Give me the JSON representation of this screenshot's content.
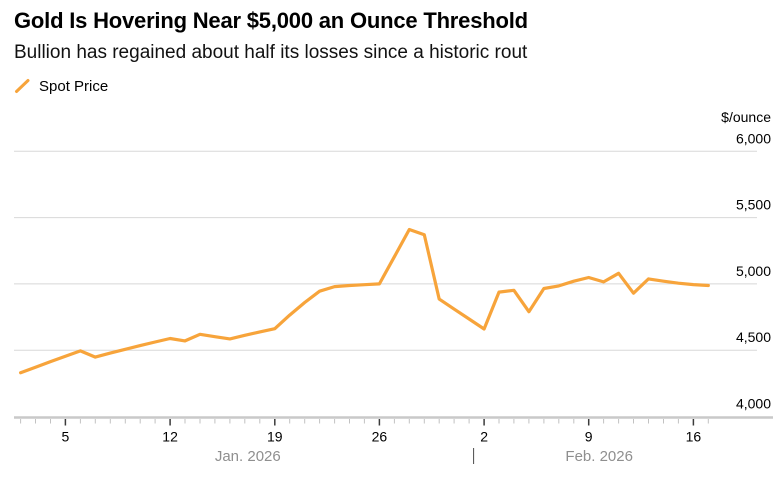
{
  "header": {
    "title": "Gold Is Hovering Near $5,000 an Ounce Threshold",
    "subtitle": "Bullion has regained about half its losses since a historic rout"
  },
  "legend": {
    "items": [
      {
        "label": "Spot Price",
        "marker": "orange-slash-icon"
      }
    ]
  },
  "colors": {
    "line": "#F7A43B",
    "grid": "#D8D8D8",
    "axis": "#C9C9C9",
    "tick_minor": "#C2C2C2",
    "tick_major": "#3A3A3A",
    "tick_label": "#000000",
    "month_label": "#8F8F8F",
    "separator": "#4A4A4A"
  },
  "chart_data": {
    "type": "line",
    "title": "Gold Is Hovering Near $5,000 an Ounce Threshold",
    "subtitle": "Bullion has regained about half its losses since a historic rout",
    "unit_label": "$/ounce",
    "xlabel": "",
    "ylabel": "$/ounce",
    "ylim": [
      4000,
      6000
    ],
    "grid": "horizontal",
    "legend_position": "top-left",
    "y_ticks": [
      {
        "value": 4000,
        "label": "4,000"
      },
      {
        "value": 4500,
        "label": "4,500"
      },
      {
        "value": 5000,
        "label": "5,000"
      },
      {
        "value": 5500,
        "label": "5,500"
      },
      {
        "value": 6000,
        "label": "6,000"
      }
    ],
    "x_major_ticks": [
      {
        "index": 3,
        "label": "5"
      },
      {
        "index": 10,
        "label": "12"
      },
      {
        "index": 17,
        "label": "19"
      },
      {
        "index": 24,
        "label": "26"
      },
      {
        "index": 31,
        "label": "2"
      },
      {
        "index": 38,
        "label": "9"
      },
      {
        "index": 45,
        "label": "16"
      }
    ],
    "month_labels": [
      {
        "label": "Jan. 2026",
        "center_index": 15.2
      },
      {
        "label": "Feb. 2026",
        "center_index": 38.7
      }
    ],
    "month_separator_index": 30.3,
    "series": [
      {
        "name": "Spot Price",
        "color": "#F7A43B",
        "x": [
          "Jan 2",
          "Jan 3",
          "Jan 4",
          "Jan 5",
          "Jan 6",
          "Jan 7",
          "Jan 8",
          "Jan 9",
          "Jan 10",
          "Jan 11",
          "Jan 12",
          "Jan 13",
          "Jan 14",
          "Jan 15",
          "Jan 16",
          "Jan 17",
          "Jan 18",
          "Jan 19",
          "Jan 20",
          "Jan 21",
          "Jan 22",
          "Jan 23",
          "Jan 24",
          "Jan 25",
          "Jan 26",
          "Jan 27",
          "Jan 28",
          "Jan 29",
          "Jan 30",
          "Jan 31",
          "Feb 1",
          "Feb 2",
          "Feb 3",
          "Feb 4",
          "Feb 5",
          "Feb 6",
          "Feb 7",
          "Feb 8",
          "Feb 9",
          "Feb 10",
          "Feb 11",
          "Feb 12",
          "Feb 13",
          "Feb 14",
          "Feb 15",
          "Feb 16",
          "Feb 17"
        ],
        "values": [
          4330,
          4372,
          4414,
          4455,
          4495,
          4448,
          4478,
          4507,
          4535,
          4562,
          4588,
          4570,
          4620,
          4602,
          4585,
          4612,
          4638,
          4662,
          4765,
          4860,
          4945,
          4980,
          4988,
          4994,
          5000,
          5205,
          5410,
          5370,
          4885,
          4810,
          4735,
          4660,
          4938,
          4952,
          4790,
          4965,
          4985,
          5020,
          5048,
          5015,
          5080,
          4930,
          5038,
          5020,
          5005,
          4995,
          4988
        ]
      }
    ]
  }
}
